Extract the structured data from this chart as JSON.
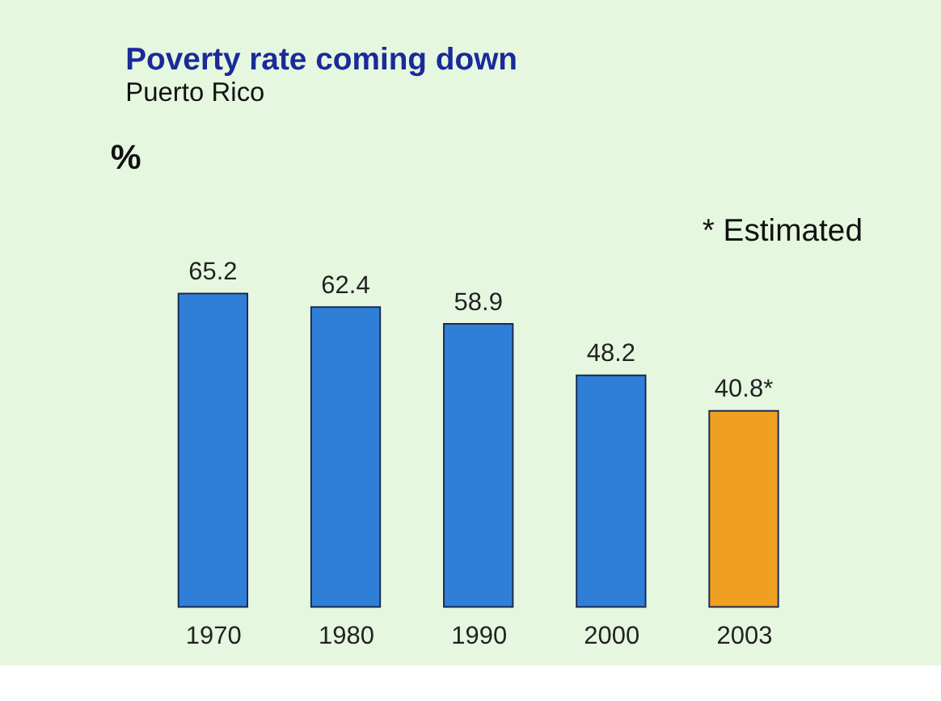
{
  "chart_data": {
    "type": "bar",
    "title": "Poverty rate coming down",
    "subtitle": "Puerto Rico",
    "ylabel": "%",
    "categories": [
      "1970",
      "1980",
      "1990",
      "2000",
      "2003"
    ],
    "values": [
      65.2,
      62.4,
      58.9,
      48.2,
      40.8
    ],
    "colors": [
      "#2f7fd8",
      "#2f7fd8",
      "#2f7fd8",
      "#2f7fd8",
      "#f0a020"
    ],
    "value_labels": [
      "65.2",
      "62.4",
      "58.9",
      "48.2",
      "40.8*"
    ],
    "annotations": [
      "* Estimated"
    ],
    "grid": false
  }
}
